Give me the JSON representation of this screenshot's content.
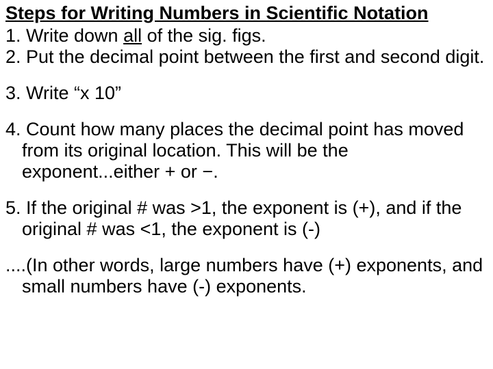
{
  "title": "Steps for Writing Numbers in Scientific Notation",
  "step1_prefix": "1. Write down ",
  "step1_underlined": "all",
  "step1_suffix": " of the sig. figs.",
  "step2": "2. Put the decimal point between the first and second digit.",
  "step3": "3. Write “x 10”",
  "step4": "4. Count how many places the decimal point has moved from its   original location.  This will be the exponent...either + or −.",
  "step5": "5. If the original # was >1, the exponent is (+), and if the original # was <1, the exponent is (-)",
  "note": "....(In other words, large numbers have (+) exponents, and small numbers have (-) exponents.",
  "colors": {
    "background": "#ffffff",
    "text": "#000000"
  },
  "typography": {
    "font_family": "Arial",
    "title_fontsize": 27,
    "title_weight": "bold",
    "body_fontsize": 27,
    "body_weight": "normal"
  }
}
